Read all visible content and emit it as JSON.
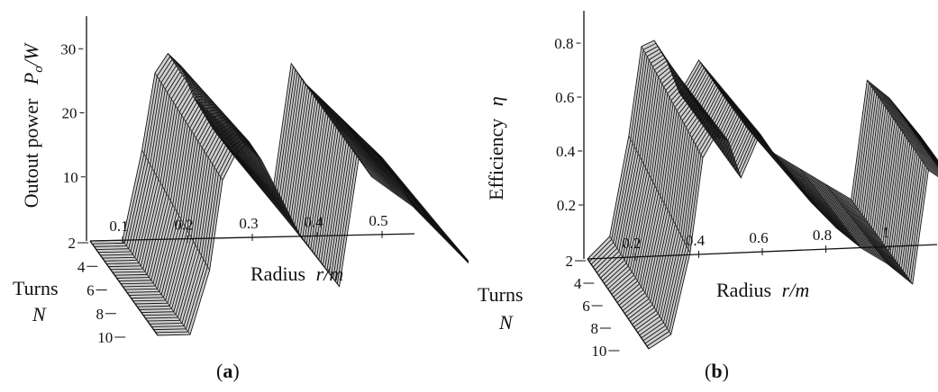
{
  "chart_data": [
    {
      "type": "surface",
      "panel_label": "a",
      "zlabel": "Outout power",
      "zlabel_symbol": "P",
      "zlabel_sub": "o",
      "zlabel_unit": "W",
      "xlabel": "Radius",
      "xlabel_symbol": "r",
      "xlabel_unit": "m",
      "ylabel_line1": "Turns",
      "ylabel_line2": "N",
      "x_ticks": [
        "0.1",
        "0.2",
        "0.3",
        "0.4",
        "0.5"
      ],
      "z_ticks": [
        "10",
        "20",
        "30"
      ],
      "y_ticks": [
        "2",
        "4",
        "6",
        "8",
        "10"
      ],
      "xlim": [
        0.05,
        0.55
      ],
      "zlim": [
        0,
        32
      ],
      "turns": [
        2,
        3,
        4,
        5,
        6,
        7,
        8,
        9,
        10
      ],
      "radius_samples": [
        0.05,
        0.1,
        0.13,
        0.15,
        0.17,
        0.19,
        0.21,
        0.24,
        0.27,
        0.3,
        0.33,
        0.36,
        0.38,
        0.42,
        0.46,
        0.5,
        0.55
      ],
      "series": [
        {
          "turns": 2,
          "values": [
            0,
            0,
            14,
            26,
            29,
            27,
            22,
            17,
            13,
            10,
            6,
            27,
            24,
            20,
            16,
            12,
            4
          ]
        },
        {
          "turns": 10,
          "values": [
            0,
            0,
            10,
            24,
            28,
            30,
            27,
            21,
            15,
            11,
            7,
            27,
            24,
            21,
            18,
            14,
            8
          ]
        }
      ]
    },
    {
      "type": "surface",
      "panel_label": "b",
      "zlabel": "Efficiency",
      "zlabel_symbol": "η",
      "xlabel": "Radius",
      "xlabel_symbol": "r",
      "xlabel_unit": "m",
      "ylabel_line1": "Turns",
      "ylabel_line2": "N",
      "x_ticks": [
        "0.2",
        "0.4",
        "0.6",
        "0.8",
        "1"
      ],
      "z_ticks": [
        "0.2",
        "0.4",
        "0.6",
        "0.8"
      ],
      "y_ticks": [
        "2",
        "4",
        "6",
        "8",
        "10"
      ],
      "xlim": [
        0.05,
        1.15
      ],
      "zlim": [
        0,
        0.9
      ],
      "turns": [
        2,
        3,
        4,
        5,
        6,
        7,
        8,
        9,
        10
      ],
      "radius_samples": [
        0.05,
        0.12,
        0.18,
        0.22,
        0.26,
        0.3,
        0.34,
        0.4,
        0.48,
        0.56,
        0.64,
        0.72,
        0.8,
        0.88,
        0.93,
        1.0,
        1.1
      ],
      "series": [
        {
          "turns": 2,
          "values": [
            0,
            0.08,
            0.45,
            0.78,
            0.8,
            0.72,
            0.6,
            0.72,
            0.58,
            0.45,
            0.36,
            0.3,
            0.24,
            0.18,
            0.62,
            0.55,
            0.4
          ]
        },
        {
          "turns": 10,
          "values": [
            0,
            0.05,
            0.35,
            0.7,
            0.78,
            0.76,
            0.62,
            0.78,
            0.64,
            0.52,
            0.42,
            0.34,
            0.28,
            0.2,
            0.62,
            0.56,
            0.42
          ]
        }
      ]
    }
  ]
}
